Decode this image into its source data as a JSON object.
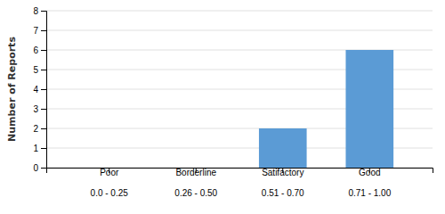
{
  "chart_data": {
    "type": "bar",
    "ylabel": "Number of Reports",
    "categories": [
      "Poor",
      "Borderline",
      "Satifactory",
      "Good"
    ],
    "subcategories": [
      "0.0 - 0.25",
      "0.26 - 0.50",
      "0.51 - 0.70",
      "0.71 - 1.00"
    ],
    "values": [
      0,
      0,
      2,
      6
    ],
    "color": "#5b9bd5",
    "ylim": [
      0,
      8
    ],
    "yticks": [
      0,
      1,
      2,
      3,
      4,
      5,
      6,
      7,
      8
    ],
    "grid": true
  }
}
